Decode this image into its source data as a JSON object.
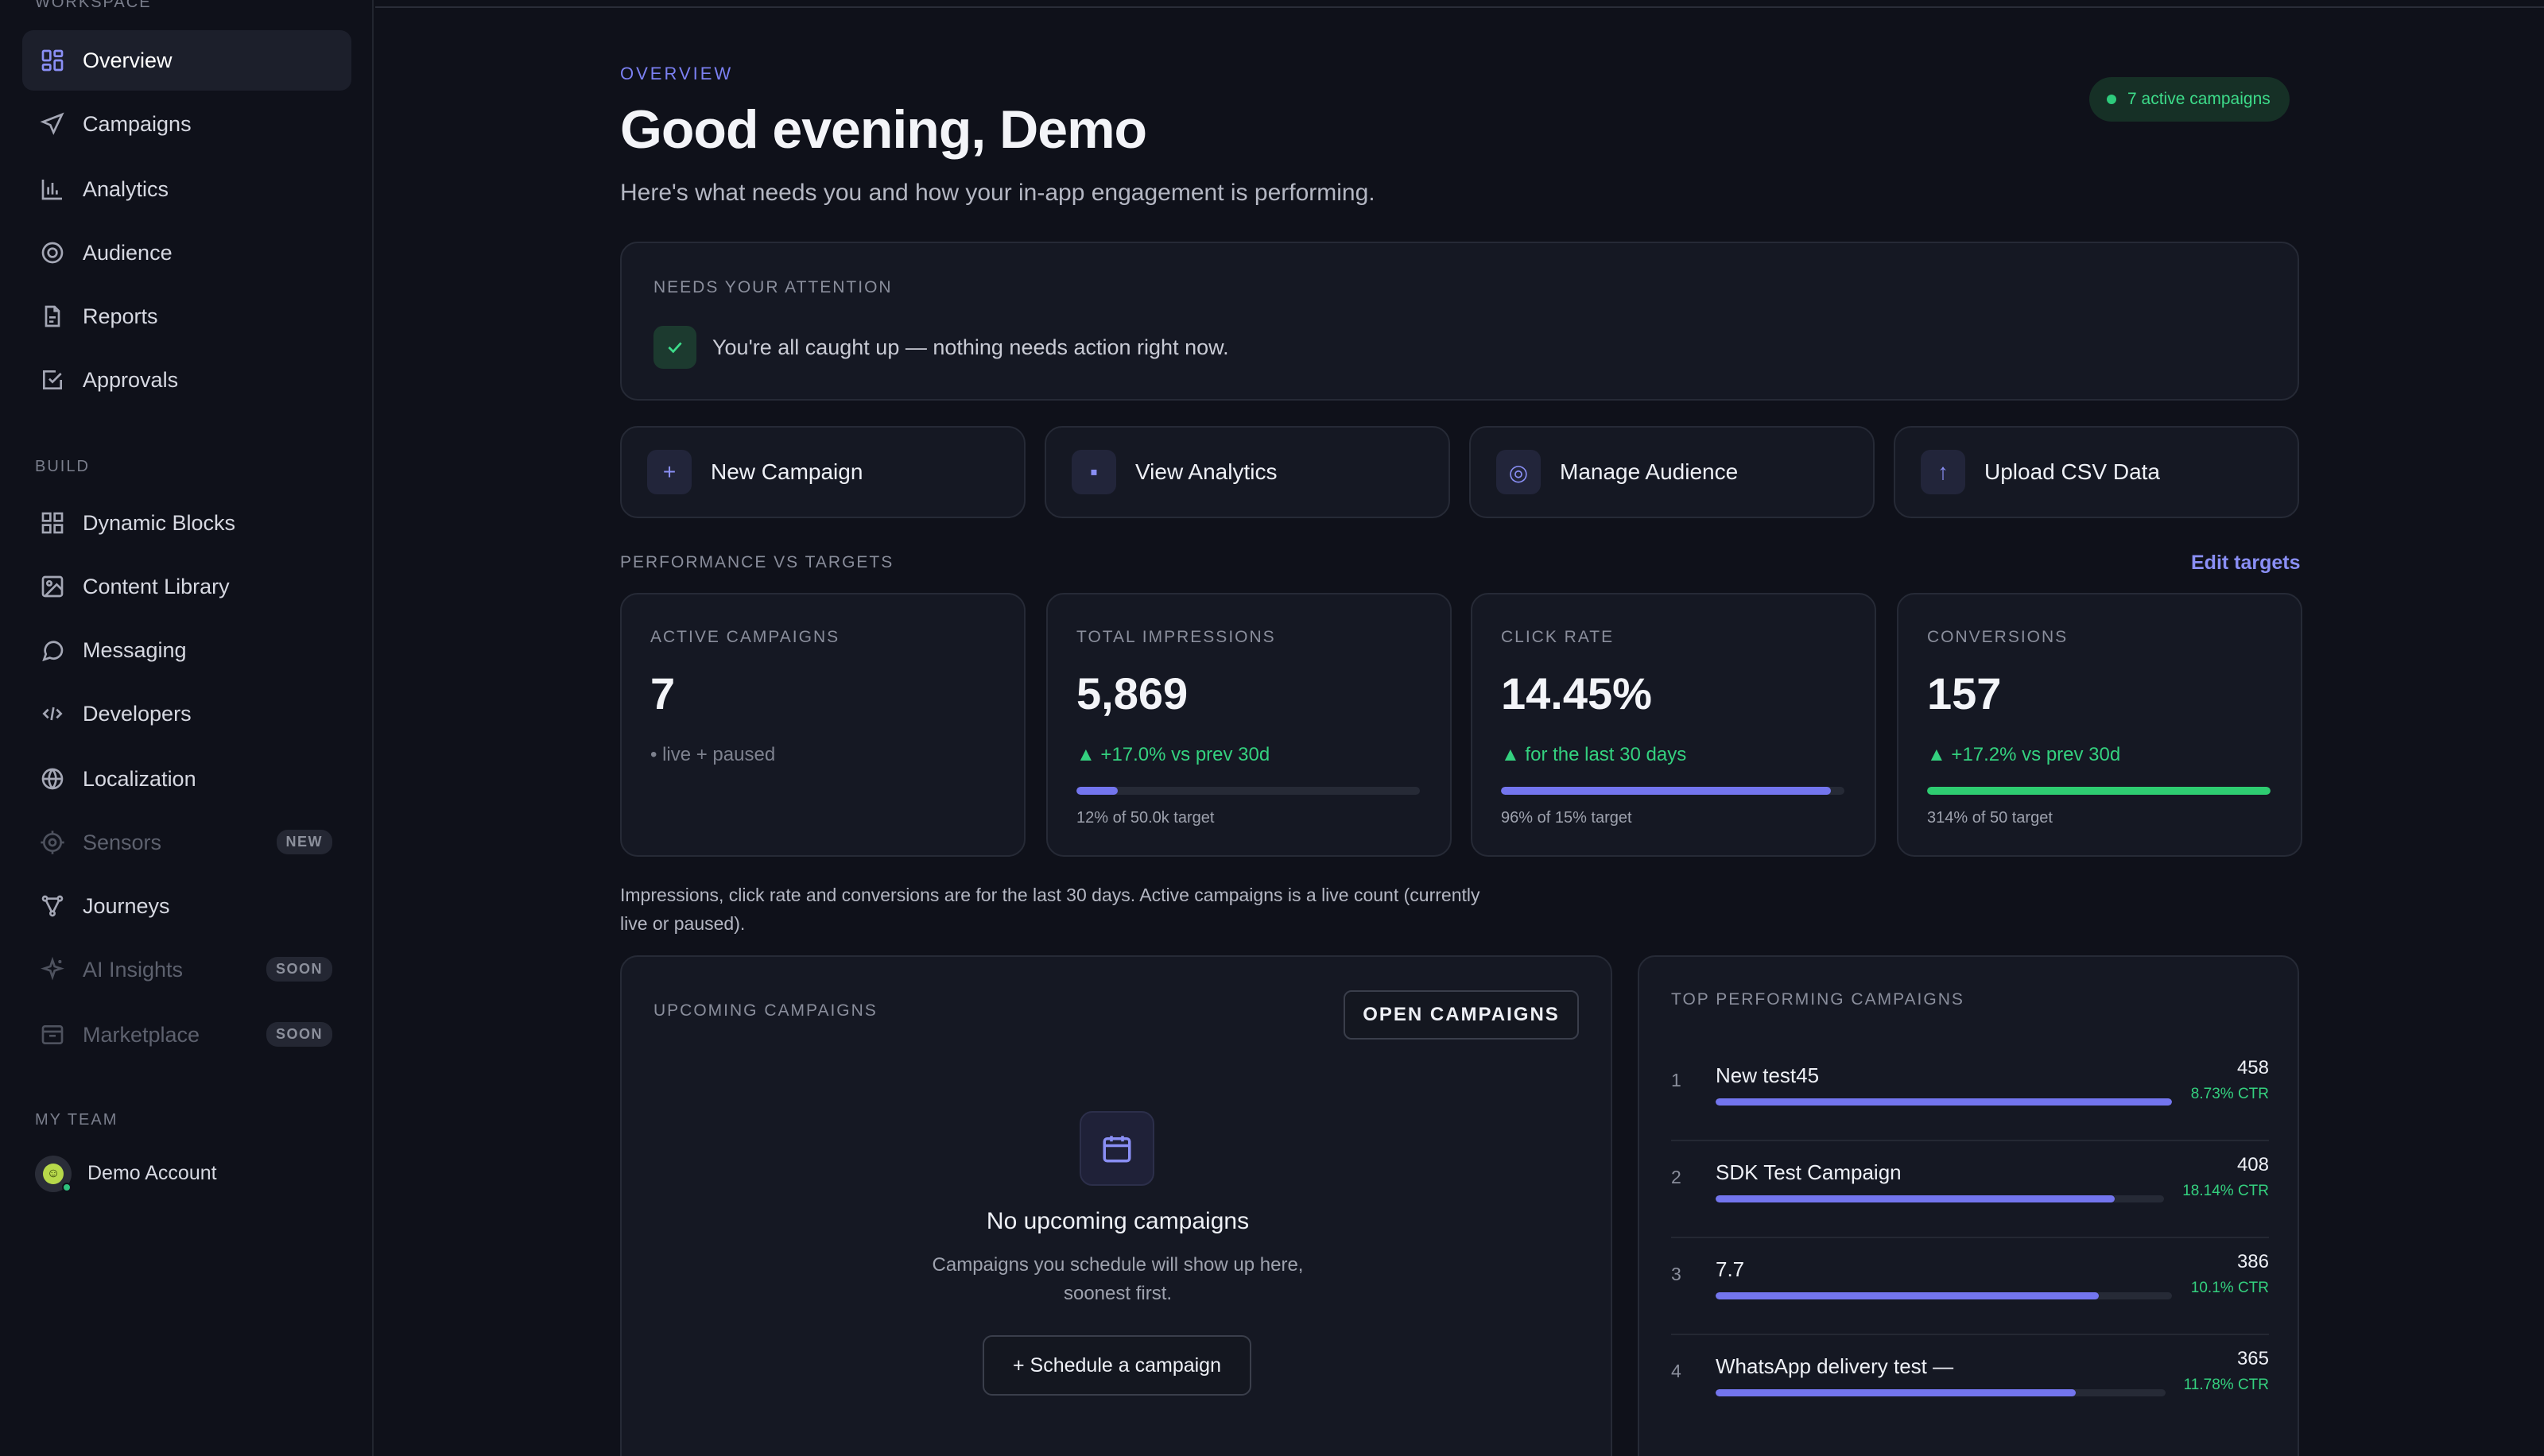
{
  "sidebar": {
    "workspace_label": "WORKSPACE",
    "build_label": "BUILD",
    "team_label": "MY TEAM",
    "workspace_items": [
      {
        "label": "Overview",
        "icon": "grid-icon"
      },
      {
        "label": "Campaigns",
        "icon": "send-icon"
      },
      {
        "label": "Analytics",
        "icon": "bar-chart-icon"
      },
      {
        "label": "Audience",
        "icon": "target-icon"
      },
      {
        "label": "Reports",
        "icon": "file-icon"
      },
      {
        "label": "Approvals",
        "icon": "check-square-icon"
      }
    ],
    "build_items": [
      {
        "label": "Dynamic Blocks",
        "icon": "blocks-icon"
      },
      {
        "label": "Content Library",
        "icon": "image-icon"
      },
      {
        "label": "Messaging",
        "icon": "chat-icon"
      },
      {
        "label": "Developers",
        "icon": "code-icon"
      },
      {
        "label": "Localization",
        "icon": "globe-icon"
      },
      {
        "label": "Sensors",
        "icon": "sensor-icon",
        "badge": "NEW"
      },
      {
        "label": "Journeys",
        "icon": "journey-icon"
      },
      {
        "label": "AI Insights",
        "icon": "sparkle-icon",
        "badge": "SOON"
      },
      {
        "label": "Marketplace",
        "icon": "store-icon",
        "badge": "SOON"
      }
    ],
    "team_member": "Demo Account",
    "team_avatar_glyph": "☺"
  },
  "header": {
    "eyebrow": "OVERVIEW",
    "greeting": "Good evening, Demo",
    "subtitle": "Here's what needs you and how your in-app engagement is performing.",
    "active_pill": "7 active campaigns"
  },
  "attention": {
    "label": "NEEDS YOUR ATTENTION",
    "message": "You're all caught up — nothing needs action right now."
  },
  "quick_actions": [
    {
      "label": "New Campaign",
      "icon_glyph": "+"
    },
    {
      "label": "View Analytics",
      "icon_glyph": "▪"
    },
    {
      "label": "Manage Audience",
      "icon_glyph": "◎"
    },
    {
      "label": "Upload CSV Data",
      "icon_glyph": "↑"
    }
  ],
  "performance": {
    "label": "PERFORMANCE VS TARGETS",
    "edit_link": "Edit targets",
    "kpis": [
      {
        "label": "ACTIVE CAMPAIGNS",
        "value": "7",
        "sub": "• live + paused"
      },
      {
        "label": "TOTAL IMPRESSIONS",
        "value": "5,869",
        "sub": "▲ +17.0% vs prev 30d",
        "target": "12% of 50.0k target",
        "progress": 0.12
      },
      {
        "label": "CLICK RATE",
        "value": "14.45%",
        "sub": "▲ for the last 30 days",
        "target": "96% of 15% target",
        "progress": 0.96
      },
      {
        "label": "CONVERSIONS",
        "value": "157",
        "sub": "▲ +17.2% vs prev 30d",
        "target": "314% of 50 target",
        "progress": 1.0
      }
    ],
    "footnote": "Impressions, click rate and conversions are for the last 30 days. Active campaigns is a live count (currently live or paused)."
  },
  "upcoming": {
    "label": "UPCOMING CAMPAIGNS",
    "open_button": "OPEN CAMPAIGNS",
    "empty_title": "No upcoming campaigns",
    "empty_desc": "Campaigns you schedule will show up here, soonest first.",
    "schedule_button": "+ Schedule a campaign"
  },
  "top_performing": {
    "label": "TOP PERFORMING CAMPAIGNS",
    "rows": [
      {
        "rank": "1",
        "name": "New test45",
        "count": "458",
        "ctr": "8.73% CTR",
        "share": 1.0
      },
      {
        "rank": "2",
        "name": "SDK Test Campaign",
        "count": "408",
        "ctr": "18.14% CTR",
        "share": 0.89
      },
      {
        "rank": "3",
        "name": "7.7",
        "count": "386",
        "ctr": "10.1% CTR",
        "share": 0.84
      },
      {
        "rank": "4",
        "name": "WhatsApp delivery test —",
        "count": "365",
        "ctr": "11.78% CTR",
        "share": 0.8
      }
    ]
  },
  "colors": {
    "accent": "#7375ee",
    "positive": "#34d17f",
    "background": "#0f111a",
    "card": "#151823"
  }
}
